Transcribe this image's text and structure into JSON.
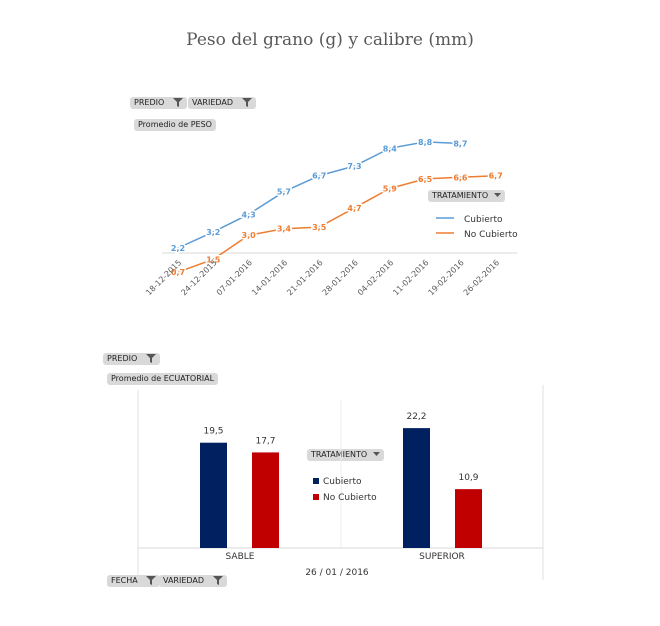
{
  "title": "Peso del grano (g) y calibre (mm)",
  "chart_data": [
    {
      "type": "line",
      "filters": {
        "predio": "PREDIO",
        "variedad": "VARIEDAD"
      },
      "measure": "Promedio de PESO",
      "legend_title": "TRATAMIENTO",
      "legend_position": "right",
      "categories": [
        "18-12-2015",
        "24-12-2015",
        "07-01-2016",
        "14-01-2016",
        "21-01-2016",
        "28-01-2016",
        "04-02-2016",
        "11-02-2016",
        "19-02-2016",
        "26-02-2016"
      ],
      "series": [
        {
          "name": "Cubierto",
          "color": "#5b9bd5",
          "values": [
            2.2,
            3.2,
            4.3,
            5.7,
            6.7,
            7.3,
            8.4,
            8.8,
            8.7,
            null
          ],
          "labels": [
            "2,2",
            "3,2",
            "4,3",
            "5,7",
            "6,7",
            "7,3",
            "8,4",
            "8,8",
            "8,7",
            ""
          ]
        },
        {
          "name": "No Cubierto",
          "color": "#ed7d31",
          "values": [
            0.7,
            1.5,
            3.0,
            3.4,
            3.5,
            4.7,
            5.9,
            6.5,
            6.6,
            6.7
          ],
          "labels": [
            "0,7",
            "1,5",
            "3,0",
            "3,4",
            "3,5",
            "4,7",
            "5,9",
            "6,5",
            "6,6",
            "6,7"
          ]
        }
      ],
      "ylim": [
        0,
        10
      ],
      "grid": false
    },
    {
      "type": "bar",
      "filters": {
        "predio": "PREDIO",
        "fecha": "FECHA",
        "variedad": "VARIEDAD"
      },
      "measure": "Promedio de ECUATORIAL",
      "legend_title": "TRATAMIENTO",
      "legend_position": "center",
      "categories": [
        "SABLE",
        "SUPERIOR"
      ],
      "group_label": "26 / 01 / 2016",
      "series": [
        {
          "name": "Cubierto",
          "color": "#002060",
          "values": [
            19.5,
            22.2
          ],
          "labels": [
            "19,5",
            "22,2"
          ]
        },
        {
          "name": "No Cubierto",
          "color": "#c00000",
          "values": [
            17.7,
            10.9
          ],
          "labels": [
            "17,7",
            "10,9"
          ]
        }
      ],
      "ylim": [
        0,
        28
      ],
      "grid": false
    }
  ]
}
